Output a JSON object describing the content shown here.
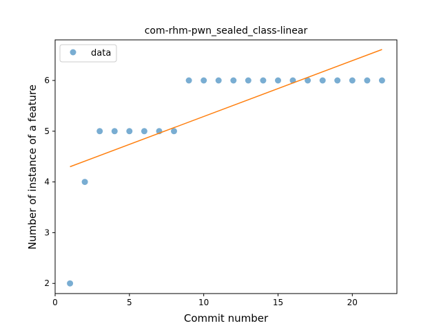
{
  "chart_data": {
    "type": "scatter",
    "title": "com-rhm-pwn_sealed_class-linear",
    "xlabel": "Commit number",
    "ylabel": "Number of instance of a feature",
    "xlim": [
      0,
      23
    ],
    "ylim": [
      1.8,
      6.8
    ],
    "x_ticks": [
      0,
      5,
      10,
      15,
      20
    ],
    "y_ticks": [
      2,
      3,
      4,
      5,
      6
    ],
    "grid": false,
    "legend_position": "top-left",
    "series": [
      {
        "name": "data",
        "kind": "points",
        "color": "#1f77b4",
        "x": [
          1,
          2,
          3,
          4,
          5,
          6,
          7,
          8,
          9,
          10,
          11,
          12,
          13,
          14,
          15,
          16,
          17,
          18,
          19,
          20,
          21,
          22
        ],
        "y": [
          2,
          4,
          5,
          5,
          5,
          5,
          5,
          5,
          6,
          6,
          6,
          6,
          6,
          6,
          6,
          6,
          6,
          6,
          6,
          6,
          6,
          6
        ]
      },
      {
        "kind": "line",
        "color": "#ff7f0e",
        "x": [
          1,
          22
        ],
        "y": [
          4.3,
          6.61
        ]
      }
    ]
  }
}
